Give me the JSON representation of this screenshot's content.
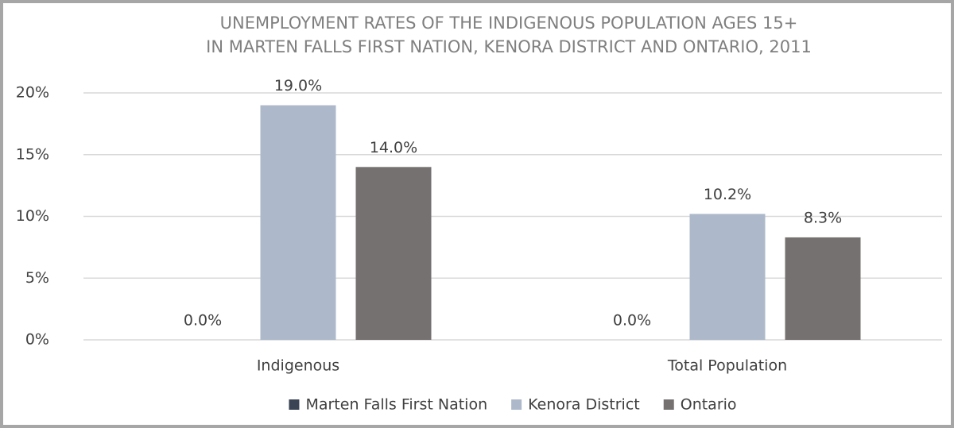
{
  "chart_data": {
    "type": "bar",
    "title": [
      "UNEMPLOYMENT RATES OF THE INDIGENOUS POPULATION AGES 15+",
      "IN MARTEN FALLS FIRST NATION, KENORA DISTRICT AND ONTARIO, 2011"
    ],
    "categories": [
      "Indigenous",
      "Total Population"
    ],
    "series": [
      {
        "name": "Marten Falls First Nation",
        "color": "#3b4455",
        "values": [
          0,
          0
        ],
        "value_labels": [
          "0.0%",
          "0.0%"
        ]
      },
      {
        "name": "Kenora District",
        "color": "#adb9ca",
        "values": [
          19.0,
          10.2
        ],
        "value_labels": [
          "19.0%",
          "10.2%"
        ]
      },
      {
        "name": "Ontario",
        "color": "#767171",
        "values": [
          14.0,
          8.3
        ],
        "value_labels": [
          "14.0%",
          "8.3%"
        ]
      }
    ],
    "ylim": [
      0,
      20
    ],
    "yticks": [
      {
        "value": 0,
        "label": "0%"
      },
      {
        "value": 5,
        "label": "5%"
      },
      {
        "value": 10,
        "label": "10%"
      },
      {
        "value": 15,
        "label": "15%"
      },
      {
        "value": 20,
        "label": "20%"
      }
    ],
    "grid": true,
    "legend": "bottom"
  }
}
